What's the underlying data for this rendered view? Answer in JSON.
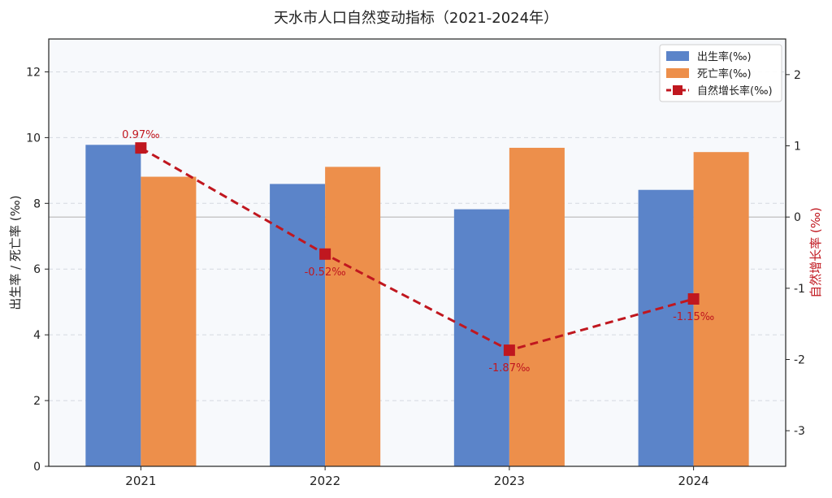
{
  "chart_data": {
    "type": "bar",
    "title": "天水市人口自然变动指标（2021-2024年）",
    "categories": [
      "2021",
      "2022",
      "2023",
      "2024"
    ],
    "ylabel": "出生率 / 死亡率 (‰)",
    "y2label": "自然增长率 (‰)",
    "ylim": [
      0,
      13
    ],
    "y2lim": [
      -3.5,
      2.5
    ],
    "yticks": [
      "0",
      "2",
      "4",
      "6",
      "8",
      "10",
      "12"
    ],
    "y2ticks": [
      "-3",
      "-2",
      "-1",
      "0",
      "1",
      "2"
    ],
    "grid": true,
    "legend_position": "top-right",
    "series": [
      {
        "name": "出生率(‰)",
        "type": "bar",
        "axis": "left",
        "color": "#5b84c9",
        "values": [
          9.78,
          8.59,
          7.82,
          8.41
        ]
      },
      {
        "name": "死亡率(‰)",
        "type": "bar",
        "axis": "left",
        "color": "#ed8f4b",
        "values": [
          8.81,
          9.11,
          9.69,
          9.56
        ]
      },
      {
        "name": "自然增长率(‰)",
        "type": "line",
        "axis": "right",
        "color": "#c0171f",
        "values": [
          0.97,
          -0.52,
          -1.87,
          -1.15
        ],
        "labels": [
          "0.97‰",
          "-0.52‰",
          "-1.87‰",
          "-1.15‰"
        ]
      }
    ]
  }
}
